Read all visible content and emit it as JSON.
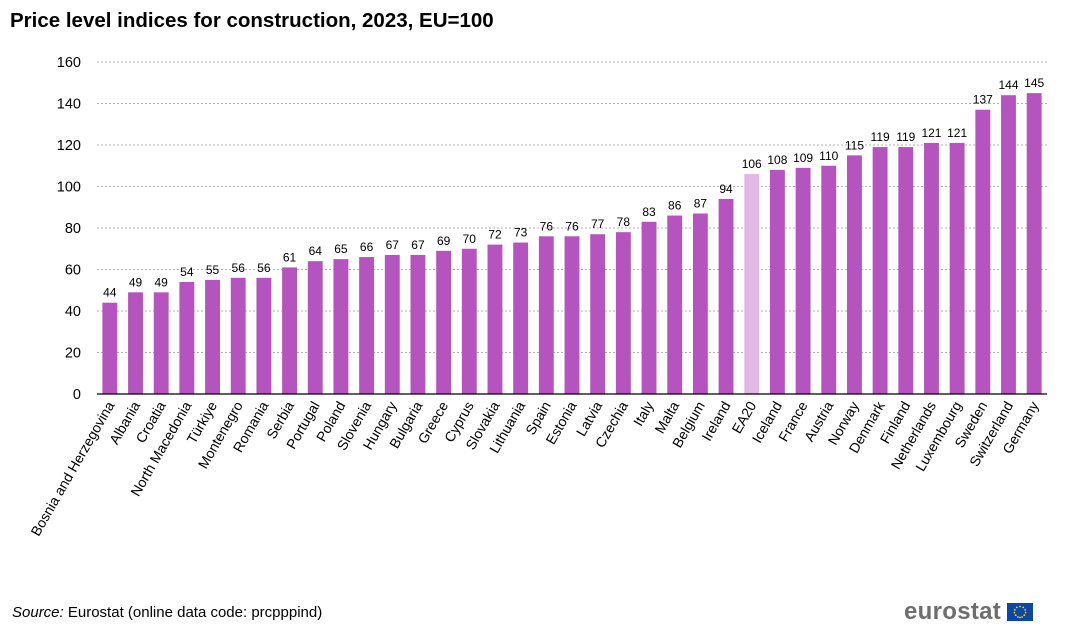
{
  "title": "Price level indices for construction, 2023, EU=100",
  "source": {
    "label": "Source:",
    "text": "Eurostat (online data code: prcpppind)"
  },
  "logo": {
    "text": "eurostat",
    "flag_icon": "eu-flag-icon"
  },
  "colors": {
    "bar": "#b554bf",
    "highlight": "#e1b8e6",
    "grid": "#b0b0b0",
    "axis": "#000000"
  },
  "chart_data": {
    "type": "bar",
    "title": "Price level indices for construction, 2023, EU=100",
    "xlabel": "",
    "ylabel": "",
    "ylim": [
      0,
      160
    ],
    "yticks": [
      0,
      20,
      40,
      60,
      80,
      100,
      120,
      140,
      160
    ],
    "grid": true,
    "highlight_category": "EA20",
    "categories": [
      "Bosnia and Herzegovina",
      "Albania",
      "Croatia",
      "North Macedonia",
      "Türkiye",
      "Montenegro",
      "Romania",
      "Serbia",
      "Portugal",
      "Poland",
      "Slovenia",
      "Hungary",
      "Bulgaria",
      "Greece",
      "Cyprus",
      "Slovakia",
      "Lithuania",
      "Spain",
      "Estonia",
      "Latvia",
      "Czechia",
      "Italy",
      "Malta",
      "Belgium",
      "Ireland",
      "EA20",
      "Iceland",
      "France",
      "Austria",
      "Norway",
      "Denmark",
      "Finland",
      "Netherlands",
      "Luxembourg",
      "Sweden",
      "Switzerland",
      "Germany"
    ],
    "values": [
      44,
      49,
      49,
      54,
      55,
      56,
      56,
      61,
      64,
      65,
      66,
      67,
      67,
      69,
      70,
      72,
      73,
      76,
      76,
      77,
      78,
      83,
      86,
      87,
      94,
      106,
      108,
      109,
      110,
      115,
      119,
      119,
      121,
      121,
      137,
      144,
      145
    ]
  }
}
